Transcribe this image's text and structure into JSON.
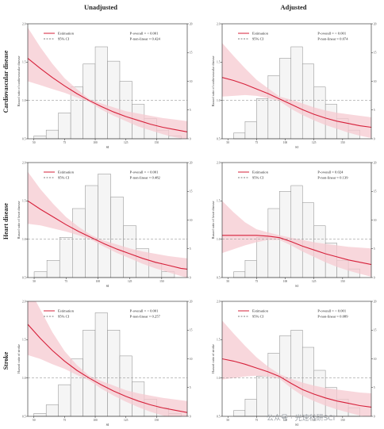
{
  "figure": {
    "col_titles": [
      "Unadjusted",
      "Adjusted"
    ],
    "row_titles": [
      "Cardiovascular disease",
      "Heart disease",
      "Stroke"
    ],
    "watermark": "公众号 · 光速科研SCI"
  },
  "colors": {
    "curve": "#d6203a",
    "ci": "#f6c9d0",
    "ref": "#9a9a9a",
    "bar_fill": "#f5f5f5",
    "bar_edge": "#8a8a8a"
  },
  "chart_data": [
    {
      "type": "line",
      "id": "cvd-unadjusted",
      "xlabel": "SI",
      "ylabel": "Hazard ratio of cardiovascular disease",
      "legend": [
        "Estimation",
        "95% CI"
      ],
      "p_overall": "P-overall = < 0.001",
      "p_nonlinear": "P-non-linear = 0.424",
      "xticks": [
        "50",
        "75",
        "100",
        "125",
        "150"
      ],
      "xlim": [
        45,
        175
      ],
      "yticks": [
        "0.5",
        "1.0",
        "1.5",
        "2.0"
      ],
      "ylim": [
        0.5,
        2.0
      ],
      "y2ticks": [
        "0",
        "5",
        "10",
        "15",
        "20"
      ],
      "y2lim": [
        0,
        20
      ],
      "ref_y": 1.0,
      "x": [
        45,
        55,
        65,
        75,
        85,
        95,
        105,
        115,
        125,
        135,
        145,
        155,
        165,
        175
      ],
      "y": [
        1.55,
        1.42,
        1.3,
        1.19,
        1.09,
        1.0,
        0.92,
        0.85,
        0.79,
        0.74,
        0.69,
        0.65,
        0.62,
        0.59
      ],
      "lower": [
        1.25,
        1.2,
        1.15,
        1.1,
        1.04,
        0.98,
        0.88,
        0.8,
        0.73,
        0.66,
        0.61,
        0.56,
        0.52,
        0.49
      ],
      "upper": [
        1.95,
        1.7,
        1.48,
        1.29,
        1.15,
        1.02,
        0.96,
        0.91,
        0.86,
        0.83,
        0.8,
        0.77,
        0.75,
        0.73
      ],
      "hist_edges": [
        50,
        60,
        70,
        80,
        90,
        100,
        110,
        120,
        130,
        140,
        150,
        160,
        170
      ],
      "hist_counts": [
        0.5,
        1.5,
        4.5,
        9,
        13,
        16,
        13.5,
        10,
        6,
        3.5,
        1.5,
        0.5
      ]
    },
    {
      "type": "line",
      "id": "cvd-adjusted",
      "xlabel": "SI",
      "ylabel": "Hazard ratio of cardiovascular disease",
      "legend": [
        "Estimation",
        "95% CI"
      ],
      "p_overall": "P-overall = < 0.001",
      "p_nonlinear": "P-non-linear = 0.074",
      "xticks": [
        "50",
        "75",
        "100",
        "125",
        "150"
      ],
      "xlim": [
        45,
        175
      ],
      "yticks": [
        "0.5",
        "1.0",
        "1.5",
        "2.0"
      ],
      "ylim": [
        0.5,
        2.0
      ],
      "y2ticks": [
        "0",
        "5",
        "10",
        "15",
        "20"
      ],
      "y2lim": [
        0,
        20
      ],
      "ref_y": 1.0,
      "x": [
        45,
        55,
        65,
        75,
        85,
        95,
        105,
        115,
        125,
        135,
        145,
        155,
        165,
        175
      ],
      "y": [
        1.3,
        1.26,
        1.21,
        1.15,
        1.09,
        1.02,
        0.95,
        0.88,
        0.82,
        0.77,
        0.73,
        0.7,
        0.67,
        0.65
      ],
      "lower": [
        1.05,
        1.06,
        1.07,
        1.06,
        1.03,
        0.99,
        0.89,
        0.81,
        0.74,
        0.68,
        0.63,
        0.58,
        0.54,
        0.51
      ],
      "upper": [
        1.75,
        1.58,
        1.42,
        1.27,
        1.16,
        1.05,
        1.01,
        0.96,
        0.91,
        0.87,
        0.84,
        0.82,
        0.8,
        0.78
      ],
      "hist_edges": [
        55,
        65,
        75,
        85,
        95,
        105,
        115,
        125,
        135,
        145,
        155,
        165
      ],
      "hist_counts": [
        1,
        3,
        7,
        11,
        14,
        16,
        13,
        9,
        6,
        3.5,
        1.5
      ]
    },
    {
      "type": "line",
      "id": "heart-unadjusted",
      "xlabel": "SI",
      "ylabel": "Hazard ratio of heart disease",
      "legend": [
        "Estimation",
        "95% CI"
      ],
      "p_overall": "P-overall = < 0.001",
      "p_nonlinear": "P-non-linear = 0.482",
      "xticks": [
        "50",
        "75",
        "100",
        "125",
        "150"
      ],
      "xlim": [
        45,
        170
      ],
      "yticks": [
        "0.5",
        "1.0",
        "1.5",
        "2.0"
      ],
      "ylim": [
        0.5,
        2.0
      ],
      "y2ticks": [
        "0",
        "5",
        "10",
        "15",
        "20"
      ],
      "y2lim": [
        0,
        20
      ],
      "ref_y": 1.0,
      "x": [
        45,
        55,
        65,
        75,
        85,
        95,
        105,
        115,
        125,
        135,
        145,
        155,
        165,
        170
      ],
      "y": [
        1.5,
        1.39,
        1.29,
        1.19,
        1.1,
        1.02,
        0.94,
        0.87,
        0.81,
        0.75,
        0.7,
        0.66,
        0.62,
        0.61
      ],
      "lower": [
        1.2,
        1.18,
        1.14,
        1.1,
        1.05,
        0.99,
        0.9,
        0.82,
        0.75,
        0.68,
        0.62,
        0.57,
        0.52,
        0.5
      ],
      "upper": [
        1.88,
        1.65,
        1.46,
        1.29,
        1.16,
        1.05,
        0.98,
        0.93,
        0.88,
        0.84,
        0.81,
        0.78,
        0.76,
        0.75
      ],
      "hist_edges": [
        50,
        60,
        70,
        80,
        90,
        100,
        110,
        120,
        130,
        140,
        150,
        160
      ],
      "hist_counts": [
        1,
        3,
        7,
        12,
        16,
        18,
        14,
        9,
        5,
        2.5,
        1
      ]
    },
    {
      "type": "line",
      "id": "heart-adjusted",
      "xlabel": "SI",
      "ylabel": "Hazard ratio of heart disease",
      "legend": [
        "Estimation",
        "95% CI"
      ],
      "p_overall": "P-overall = 0.024",
      "p_nonlinear": "P-non-linear = 0.139",
      "xticks": [
        "50",
        "75",
        "100",
        "125",
        "150"
      ],
      "xlim": [
        45,
        175
      ],
      "yticks": [
        "0.5",
        "1.0",
        "1.5",
        "2.0"
      ],
      "ylim": [
        0.5,
        2.0
      ],
      "y2ticks": [
        "0",
        "5",
        "10",
        "15",
        "20"
      ],
      "y2lim": [
        0,
        20
      ],
      "ref_y": 1.0,
      "x": [
        45,
        55,
        65,
        75,
        85,
        95,
        105,
        115,
        125,
        135,
        145,
        155,
        165,
        175
      ],
      "y": [
        1.05,
        1.05,
        1.05,
        1.05,
        1.04,
        1.02,
        0.97,
        0.91,
        0.86,
        0.81,
        0.77,
        0.73,
        0.7,
        0.67
      ],
      "lower": [
        0.82,
        0.87,
        0.92,
        0.96,
        0.99,
        0.99,
        0.92,
        0.84,
        0.77,
        0.7,
        0.64,
        0.59,
        0.55,
        0.51
      ],
      "upper": [
        1.5,
        1.35,
        1.22,
        1.13,
        1.09,
        1.05,
        1.02,
        0.99,
        0.96,
        0.94,
        0.92,
        0.9,
        0.89,
        0.88
      ],
      "hist_edges": [
        55,
        65,
        75,
        85,
        95,
        105,
        115,
        125,
        135,
        145,
        155,
        165
      ],
      "hist_counts": [
        1,
        3,
        7,
        12,
        15,
        16,
        13,
        9,
        6,
        3,
        1.5
      ]
    },
    {
      "type": "line",
      "id": "stroke-unadjusted",
      "xlabel": "SI",
      "ylabel": "Hazard ratio of stroke",
      "legend": [
        "Estimation",
        "95% CI"
      ],
      "p_overall": "P-overall = < 0.001",
      "p_nonlinear": "P-non-linear = 0.257",
      "xticks": [
        "50",
        "75",
        "100",
        "125",
        "150"
      ],
      "xlim": [
        45,
        175
      ],
      "yticks": [
        "0.5",
        "1.0",
        "1.5",
        "2.0"
      ],
      "ylim": [
        0.5,
        2.0
      ],
      "y2ticks": [
        "0",
        "5",
        "10",
        "15",
        "20"
      ],
      "y2lim": [
        0,
        20
      ],
      "ref_y": 1.0,
      "x": [
        45,
        55,
        65,
        75,
        85,
        95,
        105,
        115,
        125,
        135,
        145,
        155,
        165,
        175
      ],
      "y": [
        1.7,
        1.52,
        1.36,
        1.22,
        1.1,
        1.0,
        0.91,
        0.83,
        0.76,
        0.7,
        0.65,
        0.61,
        0.58,
        0.55
      ],
      "lower": [
        1.3,
        1.25,
        1.18,
        1.12,
        1.04,
        0.97,
        0.86,
        0.77,
        0.69,
        0.62,
        0.56,
        0.51,
        0.47,
        0.44
      ],
      "upper": [
        2.2,
        1.9,
        1.6,
        1.35,
        1.17,
        1.03,
        0.96,
        0.9,
        0.84,
        0.8,
        0.77,
        0.74,
        0.72,
        0.7
      ],
      "hist_edges": [
        50,
        60,
        70,
        80,
        90,
        100,
        110,
        120,
        130,
        140,
        150,
        160,
        170
      ],
      "hist_counts": [
        0.5,
        2,
        5.5,
        10,
        15,
        18,
        15,
        10.5,
        6,
        3,
        1.5,
        0.5
      ]
    },
    {
      "type": "line",
      "id": "stroke-adjusted",
      "xlabel": "SI",
      "ylabel": "Hazard ratio of stroke",
      "legend": [
        "Estimation",
        "95% CI"
      ],
      "p_overall": "P-overall = < 0.001",
      "p_nonlinear": "P-non-linear = 0.089",
      "xticks": [
        "50",
        "75",
        "100",
        "125",
        "150"
      ],
      "xlim": [
        45,
        175
      ],
      "yticks": [
        "0.5",
        "1.0",
        "1.5",
        "2.0"
      ],
      "ylim": [
        0.5,
        2.0
      ],
      "y2ticks": [
        "0",
        "5",
        "10",
        "15",
        "20"
      ],
      "y2lim": [
        0,
        20
      ],
      "ref_y": 1.0,
      "x": [
        45,
        55,
        65,
        75,
        85,
        95,
        105,
        115,
        125,
        135,
        145,
        155,
        165,
        175
      ],
      "y": [
        1.25,
        1.22,
        1.18,
        1.13,
        1.08,
        1.02,
        0.93,
        0.85,
        0.79,
        0.74,
        0.7,
        0.67,
        0.64,
        0.62
      ],
      "lower": [
        0.98,
        1.0,
        1.02,
        1.03,
        1.02,
        0.99,
        0.87,
        0.77,
        0.7,
        0.64,
        0.59,
        0.55,
        0.51,
        0.48
      ],
      "upper": [
        1.75,
        1.58,
        1.42,
        1.27,
        1.15,
        1.05,
        0.99,
        0.94,
        0.9,
        0.87,
        0.85,
        0.83,
        0.81,
        0.8
      ],
      "hist_edges": [
        55,
        65,
        75,
        85,
        95,
        105,
        115,
        125,
        135,
        145,
        155,
        165
      ],
      "hist_counts": [
        1,
        3,
        7,
        11,
        14,
        15,
        12,
        8,
        5,
        3,
        1.5
      ]
    }
  ]
}
